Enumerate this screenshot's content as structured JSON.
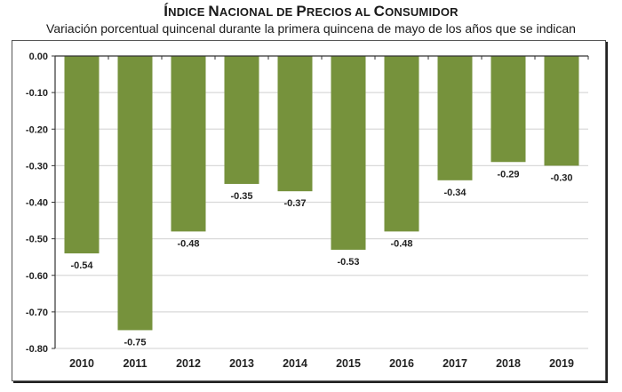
{
  "chart_data": {
    "type": "bar",
    "title": "Índice Nacional de Precios al Consumidor",
    "subtitle": "Variación porcentual quincenal durante la primera quincena de mayo de los años que se indican",
    "xlabel": "",
    "ylabel": "",
    "categories": [
      "2010",
      "2011",
      "2012",
      "2013",
      "2014",
      "2015",
      "2016",
      "2017",
      "2018",
      "2019"
    ],
    "values": [
      -0.54,
      -0.75,
      -0.48,
      -0.35,
      -0.37,
      -0.53,
      -0.48,
      -0.34,
      -0.29,
      -0.3
    ],
    "data_labels": [
      "-0.54",
      "-0.75",
      "-0.48",
      "-0.35",
      "-0.37",
      "-0.53",
      "-0.48",
      "-0.34",
      "-0.29",
      "-0.30"
    ],
    "ylim": [
      -0.8,
      0.0
    ],
    "yticks": [
      0.0,
      -0.1,
      -0.2,
      -0.3,
      -0.4,
      -0.5,
      -0.6,
      -0.7,
      -0.8
    ],
    "ytick_labels": [
      "0.00",
      "-0.10",
      "-0.20",
      "-0.30",
      "-0.40",
      "-0.50",
      "-0.60",
      "-0.70",
      "-0.80"
    ],
    "grid": true,
    "legend": "none",
    "bar_color": "#76923c",
    "grid_color": "#d9d9d9"
  },
  "header": {
    "title_parts": [
      {
        "big": "Í",
        "small": "NDICE "
      },
      {
        "big": "N",
        "small": "ACIONAL DE "
      },
      {
        "big": "P",
        "small": "RECIOS AL "
      },
      {
        "big": "C",
        "small": "ONSUMIDOR"
      }
    ]
  }
}
